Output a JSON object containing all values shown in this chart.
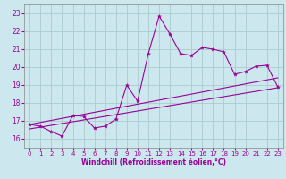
{
  "title": "",
  "xlabel": "Windchill (Refroidissement éolien,°C)",
  "bg_color": "#cce8ee",
  "line_color": "#990099",
  "grid_color": "#aacccc",
  "xlim": [
    -0.5,
    23.5
  ],
  "ylim": [
    15.5,
    23.5
  ],
  "yticks": [
    16,
    17,
    18,
    19,
    20,
    21,
    22,
    23
  ],
  "xticks": [
    0,
    1,
    2,
    3,
    4,
    5,
    6,
    7,
    8,
    9,
    10,
    11,
    12,
    13,
    14,
    15,
    16,
    17,
    18,
    19,
    20,
    21,
    22,
    23
  ],
  "main_x": [
    0,
    1,
    2,
    3,
    4,
    5,
    6,
    7,
    8,
    9,
    10,
    11,
    12,
    13,
    14,
    15,
    16,
    17,
    18,
    19,
    20,
    21,
    22,
    23
  ],
  "main_y": [
    16.8,
    16.7,
    16.4,
    16.15,
    17.3,
    17.25,
    16.6,
    16.7,
    17.1,
    19.0,
    18.1,
    20.75,
    22.85,
    21.85,
    20.75,
    20.65,
    21.1,
    21.0,
    20.85,
    19.6,
    19.75,
    20.05,
    20.1,
    18.9
  ],
  "line2_x": [
    0,
    23
  ],
  "line2_y": [
    16.8,
    19.4
  ],
  "line3_x": [
    0,
    23
  ],
  "line3_y": [
    16.55,
    18.85
  ]
}
